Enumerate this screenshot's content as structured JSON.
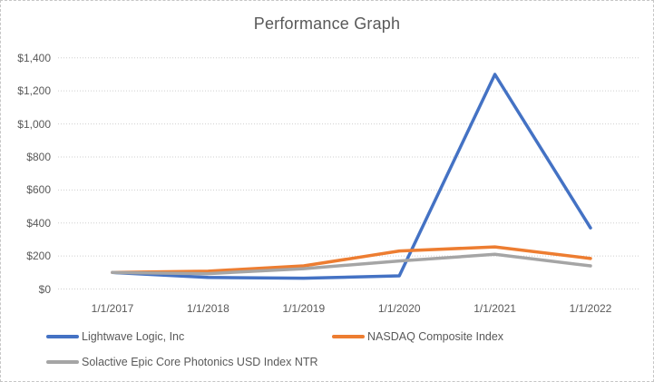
{
  "chart_data": {
    "type": "line",
    "title": "Performance Graph",
    "categories": [
      "1/1/2017",
      "1/1/2018",
      "1/1/2019",
      "1/1/2020",
      "1/1/2021",
      "1/1/2022"
    ],
    "series": [
      {
        "name": "Lightwave Logic, Inc",
        "color": "#4472C4",
        "values": [
          100,
          70,
          65,
          80,
          1300,
          370
        ]
      },
      {
        "name": "NASDAQ Composite Index",
        "color": "#ED7D31",
        "values": [
          100,
          108,
          140,
          230,
          255,
          185
        ]
      },
      {
        "name": "Solactive Epic Core Photonics USD Index NTR",
        "color": "#A5A5A5",
        "values": [
          100,
          93,
          123,
          170,
          210,
          140
        ]
      }
    ],
    "y_axis": {
      "min": 0,
      "max": 1400,
      "step": 200,
      "tick_labels_top_to_bottom": [
        "$1,400",
        "$1,200",
        "$1,000",
        "$800",
        "$600",
        "$400",
        "$200",
        "$0"
      ],
      "format": "currency"
    },
    "x_axis": {
      "label": "",
      "tick_labels": [
        "1/1/2017",
        "1/1/2018",
        "1/1/2019",
        "1/1/2020",
        "1/1/2021",
        "1/1/2022"
      ]
    },
    "grid": "horizontal-dotted",
    "legend_position": "bottom-left",
    "colors": {
      "title_text": "#595959",
      "axis_text": "#595959",
      "legend_text": "#595959",
      "gridline": "#cfcfcf",
      "background": "#ffffff"
    }
  }
}
